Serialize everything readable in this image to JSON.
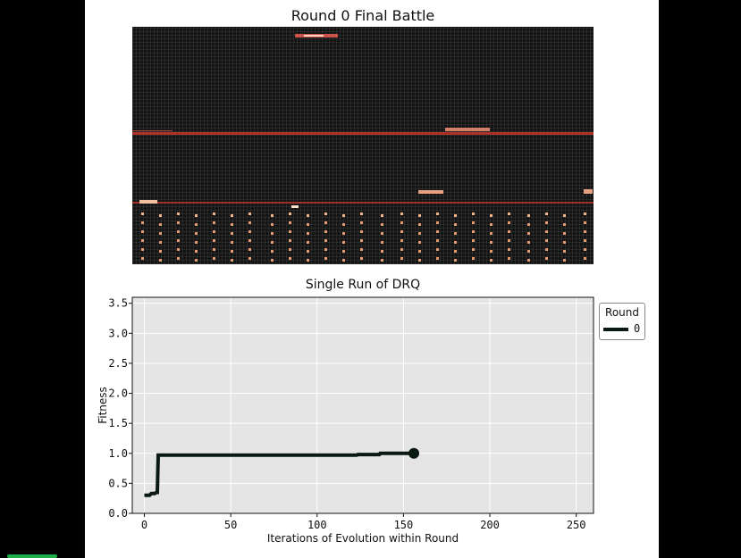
{
  "battle": {
    "title": "Round 0 Final Battle"
  },
  "legend": {
    "title": "Round",
    "entries": [
      "0"
    ]
  },
  "chart_data": {
    "type": "line",
    "title": "Single Run of DRQ",
    "xlabel": "Iterations of Evolution within Round",
    "ylabel": "Fitness",
    "xlim": [
      -7,
      260
    ],
    "ylim": [
      0.0,
      3.6
    ],
    "xticks": [
      0,
      50,
      100,
      150,
      200,
      250
    ],
    "yticks": [
      0.0,
      0.5,
      1.0,
      1.5,
      2.0,
      2.5,
      3.0,
      3.5
    ],
    "ytick_labels": [
      "0.0",
      "0.5",
      "1.0",
      "1.5",
      "2.0",
      "2.5",
      "3.0",
      "3.5"
    ],
    "grid": true,
    "legend_position": "outside-top-right",
    "series": [
      {
        "name": "0",
        "color": "#0a1a12",
        "x": [
          0,
          3,
          4,
          6,
          7,
          7.5,
          8,
          123,
          123.5,
          136,
          136.5,
          156
        ],
        "y": [
          0.3,
          0.3,
          0.33,
          0.33,
          0.35,
          0.35,
          0.97,
          0.97,
          0.98,
          0.98,
          1.0,
          1.0
        ],
        "end_marker": true
      }
    ]
  }
}
